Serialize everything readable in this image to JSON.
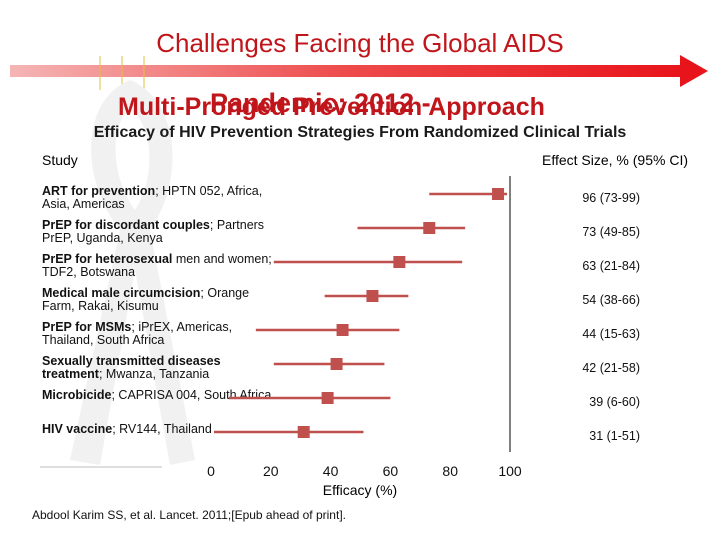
{
  "slide": {
    "title": "Challenges Facing the Global AIDS",
    "subtitle_overlap_a": "Pandemic: 2012 -",
    "subtitle_overlap_b": "Multi-Pronged Prevention Approach",
    "citation": "Abdool Karim SS, et al. Lancet. 2011;[Epub ahead of print]."
  },
  "colors": {
    "title_red": "#c0151b",
    "marker": "#c0504d",
    "arrow_red": "#e8141b"
  },
  "icons": [
    "aids-ribbon-icon",
    "timeline-arrow-icon"
  ],
  "chart_data": {
    "type": "forest",
    "title": "Efficacy of HIV Prevention Strategies From Randomized Clinical Trials",
    "column_headers": {
      "study": "Study",
      "effect": "Effect Size, % (95% CI)"
    },
    "xlabel": "Efficacy (%)",
    "xlim": [
      0,
      100
    ],
    "xticks": [
      0,
      20,
      40,
      60,
      80,
      100
    ],
    "studies": [
      {
        "name": "ART for prevention",
        "detail": "; HPTN 052, Africa, Asia, Americas",
        "effect": 96,
        "low": 73,
        "high": 99,
        "label": "96 (73-99)"
      },
      {
        "name": "PrEP for discordant couples",
        "detail": "; Partners PrEP, Uganda, Kenya",
        "effect": 73,
        "low": 49,
        "high": 85,
        "label": "73 (49-85)"
      },
      {
        "name": "PrEP for heterosexual",
        "detail": " men and women; TDF2, Botswana",
        "effect": 63,
        "low": 21,
        "high": 84,
        "label": "63 (21-84)"
      },
      {
        "name": "Medical male circumcision",
        "detail": "; Orange Farm, Rakai, Kisumu",
        "effect": 54,
        "low": 38,
        "high": 66,
        "label": "54 (38-66)"
      },
      {
        "name": "PrEP for MSMs",
        "detail": "; iPrEX, Americas, Thailand, South Africa",
        "effect": 44,
        "low": 15,
        "high": 63,
        "label": "44 (15-63)"
      },
      {
        "name": "Sexually transmitted diseases treatment",
        "detail": "; Mwanza, Tanzania",
        "effect": 42,
        "low": 21,
        "high": 58,
        "label": "42 (21-58)"
      },
      {
        "name": "Microbicide",
        "detail": "; CAPRISA 004, South Africa",
        "effect": 39,
        "low": 6,
        "high": 60,
        "label": "39 (6-60)"
      },
      {
        "name": "HIV vaccine",
        "detail": "; RV144, Thailand",
        "effect": 31,
        "low": 1,
        "high": 51,
        "label": "31 (1-51)"
      }
    ]
  }
}
